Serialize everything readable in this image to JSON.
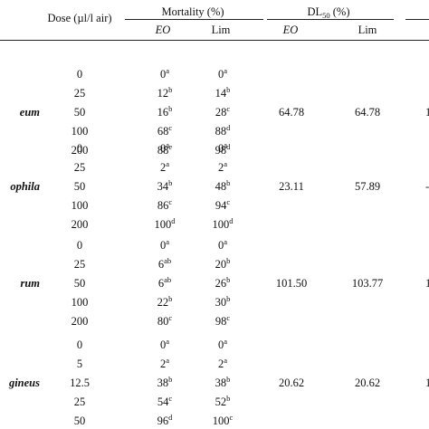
{
  "header": {
    "dose_label": "Dose (µl/l air)",
    "mortality_label": "Mortality (%)",
    "dl50_base": "DL",
    "dl50_sub": "50",
    "dl50_suffix": " (%)",
    "eo_label": "EO",
    "lim_label": "Lim",
    "eo_label_2": "EO",
    "lim_label_2": "Lim"
  },
  "groups": [
    {
      "species": "eum",
      "dl50_eo": "64.78",
      "dl50_lim": "64.78",
      "dl50_extra": "1",
      "rows": [
        {
          "dose": "0",
          "eo": "0",
          "eo_sup": "a",
          "lim": "0",
          "lim_sup": "a"
        },
        {
          "dose": "25",
          "eo": "12",
          "eo_sup": "b",
          "lim": "14",
          "lim_sup": "b"
        },
        {
          "dose": "50",
          "eo": "16",
          "eo_sup": "b",
          "lim": "28",
          "lim_sup": "c"
        },
        {
          "dose": "100",
          "eo": "68",
          "eo_sup": "c",
          "lim": "88",
          "lim_sup": "d"
        },
        {
          "dose": "200",
          "eo": "88",
          "eo_sup": "e",
          "lim": "98",
          "lim_sup": "d"
        }
      ]
    },
    {
      "species": "ophila",
      "dl50_eo": "23.11",
      "dl50_lim": "57.89",
      "dl50_extra": "-",
      "rows": [
        {
          "dose": "0",
          "eo": "0",
          "eo_sup": "a",
          "lim": "0",
          "lim_sup": "a"
        },
        {
          "dose": "25",
          "eo": "2",
          "eo_sup": "a",
          "lim": "2",
          "lim_sup": "a"
        },
        {
          "dose": "50",
          "eo": "34",
          "eo_sup": "b",
          "lim": "48",
          "lim_sup": "b"
        },
        {
          "dose": "100",
          "eo": "86",
          "eo_sup": "c",
          "lim": "94",
          "lim_sup": "c"
        },
        {
          "dose": "200",
          "eo": "100",
          "eo_sup": "d",
          "lim": "100",
          "lim_sup": "d"
        }
      ]
    },
    {
      "species": "rum",
      "dl50_eo": "101.50",
      "dl50_lim": "103.77",
      "dl50_extra": "1",
      "rows": [
        {
          "dose": "0",
          "eo": "0",
          "eo_sup": "a",
          "lim": "0",
          "lim_sup": "a"
        },
        {
          "dose": "25",
          "eo": "6",
          "eo_sup": "ab",
          "lim": "20",
          "lim_sup": "b"
        },
        {
          "dose": "50",
          "eo": "6",
          "eo_sup": "ab",
          "lim": "26",
          "lim_sup": "b"
        },
        {
          "dose": "100",
          "eo": "22",
          "eo_sup": "b",
          "lim": "30",
          "lim_sup": "b"
        },
        {
          "dose": "200",
          "eo": "80",
          "eo_sup": "c",
          "lim": "98",
          "lim_sup": "c"
        }
      ]
    },
    {
      "species": "gineus",
      "dl50_eo": "20.62",
      "dl50_lim": "20.62",
      "dl50_extra": "1",
      "rows": [
        {
          "dose": "0",
          "eo": "0",
          "eo_sup": "a",
          "lim": "0",
          "lim_sup": "a"
        },
        {
          "dose": "5",
          "eo": "2",
          "eo_sup": "a",
          "lim": "2",
          "lim_sup": "a"
        },
        {
          "dose": "12.5",
          "eo": "38",
          "eo_sup": "b",
          "lim": "38",
          "lim_sup": "b"
        },
        {
          "dose": "25",
          "eo": "54",
          "eo_sup": "c",
          "lim": "52",
          "lim_sup": "b"
        },
        {
          "dose": "50",
          "eo": "96",
          "eo_sup": "d",
          "lim": "100",
          "lim_sup": "c"
        }
      ]
    }
  ]
}
